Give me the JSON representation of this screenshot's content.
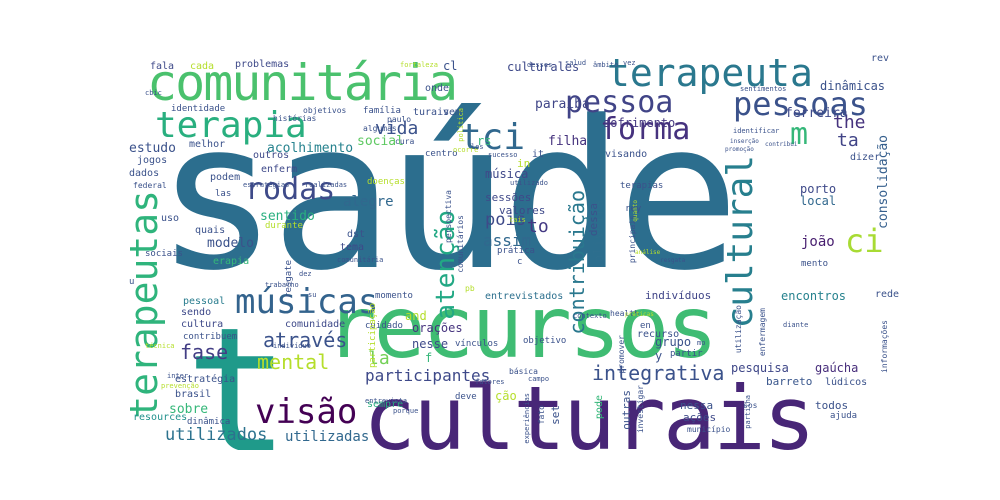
{
  "words": [
    {
      "text": "saúde",
      "color": "#2c6e8e"
    },
    {
      "text": "culturais",
      "color": "#482677"
    },
    {
      "text": "recursos",
      "color": "#3fbc73"
    },
    {
      "text": "t",
      "color": "#1f9a8a"
    },
    {
      "text": "comunitária",
      "color": "#4ac16d"
    },
    {
      "text": "terapeuta",
      "color": "#2a788e"
    },
    {
      "text": "terapia",
      "color": "#29af7f"
    },
    {
      "text": "pessoa",
      "color": "#414487"
    },
    {
      "text": "pessoas",
      "color": "#3b528b"
    },
    {
      "text": "forma",
      "color": "#46327e"
    },
    {
      "text": "tci",
      "color": "#31688e"
    },
    {
      "text": "rodas",
      "color": "#3e4a89"
    },
    {
      "text": "ci",
      "color": "#a8db34"
    },
    {
      "text": "m",
      "color": "#35b779"
    },
    {
      "text": "cultural",
      "color": "#277f8e"
    },
    {
      "text": "terapeutas",
      "color": "#2fb47c"
    },
    {
      "text": "músicas",
      "color": "#33638d"
    },
    {
      "text": "visão",
      "color": "#440154"
    },
    {
      "text": "através",
      "color": "#3b528b"
    },
    {
      "text": "mental",
      "color": "#b5de2b"
    },
    {
      "text": "fase",
      "color": "#433e85"
    },
    {
      "text": "integrativa",
      "color": "#3b528b"
    },
    {
      "text": "participantes",
      "color": "#3e4989"
    },
    {
      "text": "atenção",
      "color": "#22a884"
    },
    {
      "text": "contribuição",
      "color": "#2a788e"
    },
    {
      "text": "the",
      "color": "#46337e"
    },
    {
      "text": "ta",
      "color": "#414487"
    },
    {
      "text": "vida",
      "color": "#3b528b"
    },
    {
      "text": "utilizados",
      "color": "#2c728e"
    },
    {
      "text": "utilizadas",
      "color": "#31688e"
    },
    {
      "text": "la",
      "color": "#73d056"
    },
    {
      "text": "to",
      "color": "#443983"
    },
    {
      "text": "pois",
      "color": "#3e4a89"
    },
    {
      "text": "assim",
      "color": "#31688e"
    },
    {
      "text": "modelo",
      "color": "#3b528b"
    },
    {
      "text": "sentido",
      "color": "#29af7f"
    },
    {
      "text": "alegre",
      "color": "#31688e"
    },
    {
      "text": "joão",
      "color": "#481f70"
    },
    {
      "text": "paraíba",
      "color": "#404688"
    },
    {
      "text": "filha",
      "color": "#46337e"
    },
    {
      "text": "sofrimento",
      "color": "#453781"
    },
    {
      "text": "ferreira",
      "color": "#3e4989"
    },
    {
      "text": "social",
      "color": "#5ec962"
    },
    {
      "text": "estudo",
      "color": "#3b528b"
    },
    {
      "text": "acolhimento",
      "color": "#26828e"
    },
    {
      "text": "culturales",
      "color": "#3e4989"
    },
    {
      "text": "oliveira",
      "color": "#2e6f8e"
    },
    {
      "text": "consolidação",
      "color": "#355f8d"
    },
    {
      "text": "dinâmicas",
      "color": "#3b528b"
    },
    {
      "text": "local",
      "color": "#31688e"
    },
    {
      "text": "porto",
      "color": "#3e4989"
    },
    {
      "text": "pesquisa",
      "color": "#3f4788"
    },
    {
      "text": "gaúcha",
      "color": "#472d7b"
    },
    {
      "text": "encontros",
      "color": "#26828e"
    },
    {
      "text": "barreto",
      "color": "#39568c"
    },
    {
      "text": "sobre",
      "color": "#35b779"
    },
    {
      "text": "grupo",
      "color": "#3b528b"
    },
    {
      "text": "nessa",
      "color": "#3b528b"
    },
    {
      "text": "indivíduos",
      "color": "#404588"
    },
    {
      "text": "música",
      "color": "#3f4889"
    },
    {
      "text": "sessões",
      "color": "#3f4889"
    },
    {
      "text": "valores",
      "color": "#3e4989"
    },
    {
      "text": "entrevistados",
      "color": "#2d708e"
    },
    {
      "text": "orações",
      "color": "#46337e"
    },
    {
      "text": "nesse",
      "color": "#3e4989"
    },
    {
      "text": "dessa",
      "color": "#3b528b"
    },
    {
      "text": "outras",
      "color": "#3b528b"
    },
    {
      "text": "pode",
      "color": "#35b779"
    },
    {
      "text": "ações",
      "color": "#3e4989"
    },
    {
      "text": "todos",
      "color": "#3b528b"
    },
    {
      "text": "sempre",
      "color": "#29af7f"
    },
    {
      "text": "brasil",
      "color": "#3b528b"
    },
    {
      "text": "estratégia",
      "color": "#3b528b"
    },
    {
      "text": "cultura",
      "color": "#3e4989"
    },
    {
      "text": "comunidade",
      "color": "#3e4989"
    },
    {
      "text": "pessoal",
      "color": "#287c8e"
    },
    {
      "text": "sendo",
      "color": "#3e4989"
    },
    {
      "text": "resources",
      "color": "#21918c"
    },
    {
      "text": "dinâmica",
      "color": "#3b528b"
    },
    {
      "text": "quais",
      "color": "#3b528b"
    },
    {
      "text": "erapia",
      "color": "#35b779"
    },
    {
      "text": "dst",
      "color": "#3b528b"
    },
    {
      "text": "tema",
      "color": "#3e4989"
    },
    {
      "text": "outros",
      "color": "#3e4989"
    },
    {
      "text": "enferm",
      "color": "#3e4989"
    },
    {
      "text": "podem",
      "color": "#3b528b"
    },
    {
      "text": "melhor",
      "color": "#3b528b"
    },
    {
      "text": "jogos",
      "color": "#3b528b"
    },
    {
      "text": "dados",
      "color": "#3b528b"
    },
    {
      "text": "uso",
      "color": "#3b528b"
    },
    {
      "text": "fala",
      "color": "#3e4989"
    },
    {
      "text": "cada",
      "color": "#b5de2b"
    },
    {
      "text": "problemas",
      "color": "#3e4989"
    },
    {
      "text": "onde",
      "color": "#3b528b"
    },
    {
      "text": "identidade",
      "color": "#3b528b"
    },
    {
      "text": "família",
      "color": "#3b528b"
    },
    {
      "text": "turais",
      "color": "#3b528b"
    },
    {
      "text": "vem",
      "color": "#3b528b"
    },
    {
      "text": "cl",
      "color": "#3b528b"
    },
    {
      "text": "rev",
      "color": "#3b528b"
    },
    {
      "text": "recurso",
      "color": "#3b528b"
    },
    {
      "text": "cuidado",
      "color": "#3b528b"
    },
    {
      "text": "and",
      "color": "#b5de2b"
    },
    {
      "text": "set",
      "color": "#3b528b"
    },
    {
      "text": "ção",
      "color": "#b5de2b"
    },
    {
      "text": "vínculos",
      "color": "#3b528b"
    },
    {
      "text": "objetivo",
      "color": "#3b528b"
    },
    {
      "text": "deve",
      "color": "#3b528b"
    },
    {
      "text": "rey",
      "color": "#3b528b"
    },
    {
      "text": "visando",
      "color": "#3b528b"
    },
    {
      "text": "redes",
      "color": "#3b528b"
    },
    {
      "text": "lúdicos",
      "color": "#3b528b"
    },
    {
      "text": "ajuda",
      "color": "#3b528b"
    },
    {
      "text": "dizer",
      "color": "#3b528b"
    },
    {
      "text": "mento",
      "color": "#3b528b"
    },
    {
      "text": "momento",
      "color": "#3b528b"
    },
    {
      "text": "partir",
      "color": "#3b528b"
    },
    {
      "text": "terapias",
      "color": "#3b528b"
    },
    {
      "text": "centro",
      "color": "#3b528b"
    },
    {
      "text": "paulo",
      "color": "#3b528b"
    },
    {
      "text": "algumas",
      "color": "#3b528b"
    },
    {
      "text": "objetivos",
      "color": "#3b528b"
    },
    {
      "text": "histórias",
      "color": "#3b528b"
    },
    {
      "text": "cura",
      "color": "#3b528b"
    },
    {
      "text": "prática",
      "color": "#3b528b"
    },
    {
      "text": "resgate",
      "color": "#3b528b"
    },
    {
      "text": "durante",
      "color": "#b5de2b"
    },
    {
      "text": "doenças",
      "color": "#b5de2b"
    },
    {
      "text": "realizadas",
      "color": "#3b528b"
    },
    {
      "text": "estratégias",
      "color": "#3b528b"
    },
    {
      "text": "las",
      "color": "#3b528b"
    },
    {
      "text": "sociais",
      "color": "#3b528b"
    },
    {
      "text": "federal",
      "color": "#3b528b"
    },
    {
      "text": "cbic",
      "color": "#3b528b"
    },
    {
      "text": "en",
      "color": "#3b528b"
    },
    {
      "text": "in",
      "color": "#b5de2b"
    },
    {
      "text": "it",
      "color": "#3b528b"
    },
    {
      "text": "rs",
      "color": "#35b779"
    },
    {
      "text": "f",
      "color": "#35b779"
    },
    {
      "text": "y",
      "color": "#3b528b"
    },
    {
      "text": "c",
      "color": "#3b528b"
    },
    {
      "text": "u",
      "color": "#3b528b"
    },
    {
      "text": "fatores",
      "color": "#3b528b"
    },
    {
      "text": "básica",
      "color": "#3b528b"
    },
    {
      "text": "campo",
      "color": "#3b528b"
    },
    {
      "text": "município",
      "color": "#3b528b"
    },
    {
      "text": "investigar",
      "color": "#3b528b"
    },
    {
      "text": "fato",
      "color": "#3b528b"
    },
    {
      "text": "experiências",
      "color": "#3b528b"
    },
    {
      "text": "porque",
      "color": "#3b528b"
    },
    {
      "text": "prevenção",
      "color": "#b5de2b"
    },
    {
      "text": "inter",
      "color": "#3b528b"
    },
    {
      "text": "técnica",
      "color": "#b5de2b"
    },
    {
      "text": "participação",
      "color": "#b5de2b"
    },
    {
      "text": "entrevista",
      "color": "#3b528b"
    },
    {
      "text": "trabalho",
      "color": "#3b528b"
    },
    {
      "text": "comunitária",
      "color": "#3b528b"
    },
    {
      "text": "perspectiva",
      "color": "#3b528b"
    },
    {
      "text": "comunitários",
      "color": "#3b528b"
    },
    {
      "text": "health",
      "color": "#3b528b"
    },
    {
      "text": "contexto",
      "color": "#3b528b"
    },
    {
      "text": "promover",
      "color": "#3b528b"
    },
    {
      "text": "principais",
      "color": "#3b528b"
    },
    {
      "text": "utilização",
      "color": "#3b528b"
    },
    {
      "text": "enfermagem",
      "color": "#3b528b"
    },
    {
      "text": "diante",
      "color": "#3b528b"
    },
    {
      "text": "informações",
      "color": "#3b528b"
    },
    {
      "text": "partilha",
      "color": "#3b528b"
    },
    {
      "text": "sos",
      "color": "#3b528b"
    },
    {
      "text": "pb",
      "color": "#b5de2b"
    },
    {
      "text": "sucesso",
      "color": "#3b528b"
    },
    {
      "text": "política",
      "color": "#b5de2b"
    },
    {
      "text": "fortaleza",
      "color": "#b5de2b"
    },
    {
      "text": "desses",
      "color": "#3b528b"
    },
    {
      "text": "salud",
      "color": "#3b528b"
    },
    {
      "text": "âmbito",
      "color": "#3b528b"
    },
    {
      "text": "vez",
      "color": "#3b528b"
    },
    {
      "text": "sentimentos",
      "color": "#3b528b"
    },
    {
      "text": "identificar",
      "color": "#3b528b"
    },
    {
      "text": "promoção",
      "color": "#3b528b"
    },
    {
      "text": "contribui",
      "color": "#3b528b"
    },
    {
      "text": "inserção",
      "color": "#3b528b"
    },
    {
      "text": "análise",
      "color": "#b5de2b"
    },
    {
      "text": "resgata",
      "color": "#3b528b"
    },
    {
      "text": "contribuem",
      "color": "#3b528b"
    },
    {
      "text": "dez",
      "color": "#3b528b"
    },
    {
      "text": "su",
      "color": "#3b528b"
    },
    {
      "text": "quanto",
      "color": "#b5de2b"
    },
    {
      "text": "práticas",
      "color": "#b5de2b"
    },
    {
      "text": "ocorre",
      "color": "#b5de2b"
    },
    {
      "text": "los",
      "color": "#3b528b"
    },
    {
      "text": "utilizado",
      "color": "#3b528b"
    },
    {
      "text": "tais",
      "color": "#b5de2b"
    },
    {
      "text": "indivíduo",
      "color": "#3b528b"
    },
    {
      "text": "mo",
      "color": "#3b528b"
    }
  ]
}
